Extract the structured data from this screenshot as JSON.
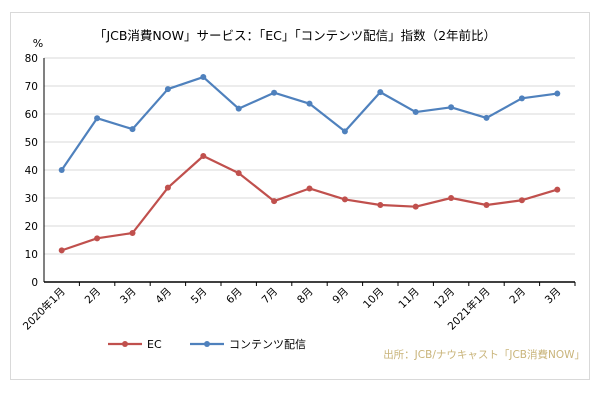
{
  "chart_data": {
    "type": "line",
    "title": "「JCB消費NOW」サービス：「EC」「コンテンツ配信」指数（2年前比）",
    "xlabel": "",
    "ylabel": "%",
    "ylim": [
      0,
      80
    ],
    "yticks": [
      "0",
      "10",
      "20",
      "30",
      "40",
      "50",
      "60",
      "70",
      "80"
    ],
    "grid": "horizontal",
    "legend": "bottom-left",
    "categories": [
      "2020年1月",
      "2月",
      "3月",
      "4月",
      "5月",
      "6月",
      "7月",
      "8月",
      "9月",
      "10月",
      "11月",
      "12月",
      "2021年1月",
      "2月",
      "3月"
    ],
    "series": [
      {
        "name": "EC",
        "color": "#c0504d",
        "values": [
          11.3,
          15.6,
          17.5,
          33.7,
          45.0,
          38.9,
          28.9,
          33.4,
          29.5,
          27.5,
          26.9,
          30.0,
          27.5,
          29.2,
          33.0
        ]
      },
      {
        "name": "コンテンツ配信",
        "color": "#4f81bd",
        "values": [
          40.0,
          58.5,
          54.6,
          68.9,
          73.2,
          61.9,
          67.6,
          63.7,
          53.8,
          67.8,
          60.7,
          62.4,
          58.6,
          65.6,
          67.3
        ]
      }
    ],
    "source_note": "出所：JCB/ナウキャスト「JCB消費NOW」"
  }
}
